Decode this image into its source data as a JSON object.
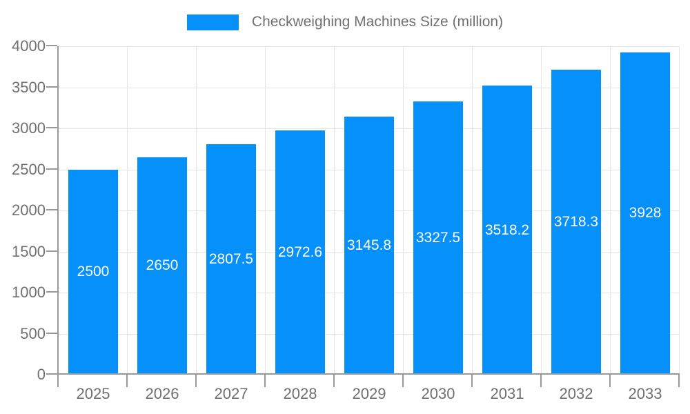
{
  "chart_data": {
    "type": "bar",
    "title": "Checkweighing Machines Size (million)",
    "legend": "Checkweighing Machines Size (million)",
    "legend_position": "top",
    "categories": [
      "2025",
      "2026",
      "2027",
      "2028",
      "2029",
      "2030",
      "2031",
      "2032",
      "2033"
    ],
    "values": [
      2500,
      2650,
      2807.5,
      2972.6,
      3145.8,
      3327.5,
      3518.2,
      3718.3,
      3928
    ],
    "value_labels": [
      "2500",
      "2650",
      "2807.5",
      "2972.6",
      "3145.8",
      "3327.5",
      "3518.2",
      "3718.3",
      "3928"
    ],
    "xlabel": "",
    "ylabel": "",
    "ylim": [
      0,
      4000
    ],
    "y_tick_step": 500,
    "y_tick_labels": [
      "0",
      "500",
      "1000",
      "1500",
      "2000",
      "2500",
      "3000",
      "3500",
      "4000"
    ],
    "grid": true
  },
  "colors": {
    "bar": "#0690fa",
    "bar_label": "#ffffff",
    "axis_text": "#707070",
    "legend_text": "#707070",
    "grid": "#e6e6e6",
    "axis_line": "#999999"
  }
}
